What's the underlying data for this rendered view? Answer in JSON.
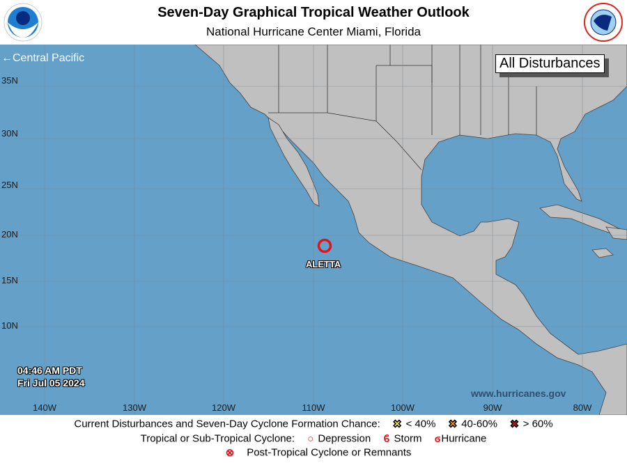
{
  "header": {
    "title": "Seven-Day Graphical Tropical Weather Outlook",
    "subtitle": "National Hurricane Center  Miami, Florida",
    "logo_left": "NOAA",
    "logo_right": "NATIONAL WEATHER SERVICE"
  },
  "map": {
    "nav_link": "←Central Pacific",
    "view_label": "All Disturbances",
    "latitude_labels": [
      "35N",
      "30N",
      "25N",
      "20N",
      "15N",
      "10N"
    ],
    "longitude_labels": [
      "140W",
      "130W",
      "120W",
      "110W",
      "100W",
      "90W",
      "80W"
    ],
    "timestamp_time": "04:46 AM PDT",
    "timestamp_date": "Fri Jul 05 2024",
    "website": "www.hurricanes.gov",
    "systems": [
      {
        "name": "ALETTA",
        "type": "Depression",
        "lat": 18.9,
        "lon": -109.0,
        "color": "#e0141e"
      }
    ],
    "colors": {
      "ocean": "#64a0c8",
      "land": "#c0c0c0",
      "grid": "#7a8a99"
    }
  },
  "legend": {
    "row1_label": "Current Disturbances and Seven-Day Cyclone Formation Chance:",
    "low": {
      "label": "< 40%",
      "color": "#ffff00"
    },
    "medium": {
      "label": "40-60%",
      "color": "#ff9900"
    },
    "high": {
      "label": "> 60%",
      "color": "#ff0000"
    },
    "row2_label": "Tropical or Sub-Tropical Cyclone:",
    "depression": "Depression",
    "storm": "Storm",
    "hurricane": "Hurricane",
    "post_tropical": "Post-Tropical Cyclone or Remnants"
  }
}
